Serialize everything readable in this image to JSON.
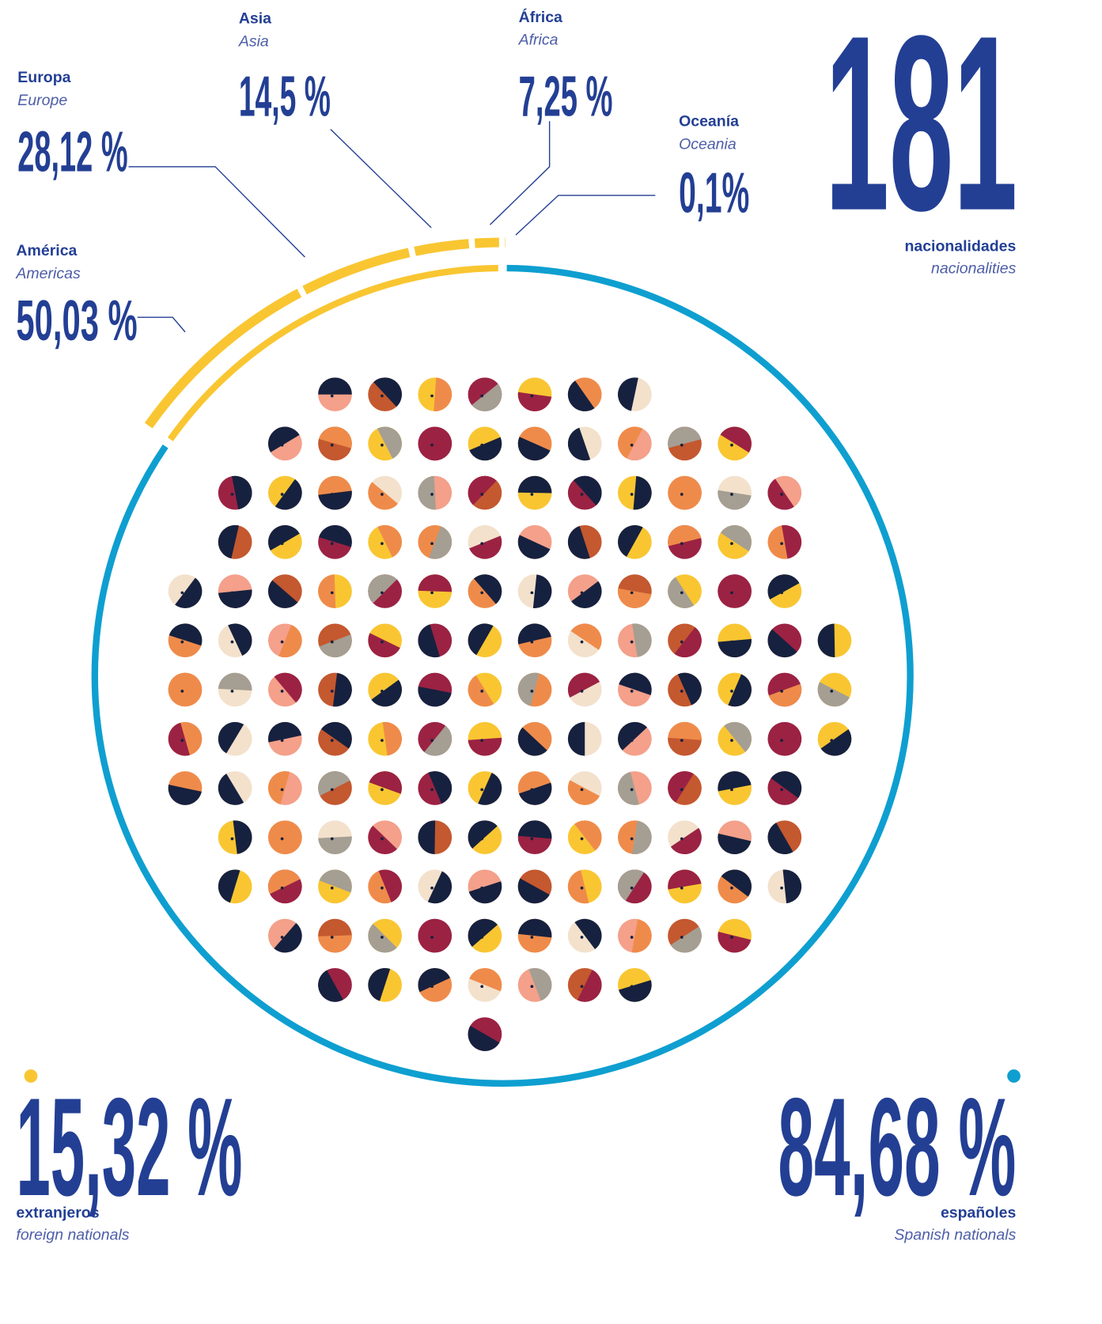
{
  "chart_data": {
    "type": "donut",
    "categories": [
      "españoles",
      "extranjeros"
    ],
    "categories_en": [
      "Spanish nationals",
      "foreign nationals"
    ],
    "values": [
      84.68,
      15.32
    ],
    "value_labels": [
      "84,68 %",
      "15,32 %"
    ],
    "colors": [
      "#0e9fd0",
      "#f9c632"
    ],
    "breakdown": {
      "categories": [
        "América",
        "Europa",
        "Asia",
        "África",
        "Oceanía"
      ],
      "categories_en": [
        "Americas",
        "Europe",
        "Asia",
        "Africa",
        "Oceania"
      ],
      "values": [
        50.03,
        28.12,
        14.5,
        7.25,
        0.1
      ],
      "value_labels": [
        "50,03 %",
        "28,12 %",
        "14,5 %",
        "7,25 %",
        "0,1%"
      ],
      "color": "#f9c632"
    },
    "headline": {
      "value": 181,
      "label": "nacionalidades",
      "label_en": "nacionalities"
    }
  }
}
